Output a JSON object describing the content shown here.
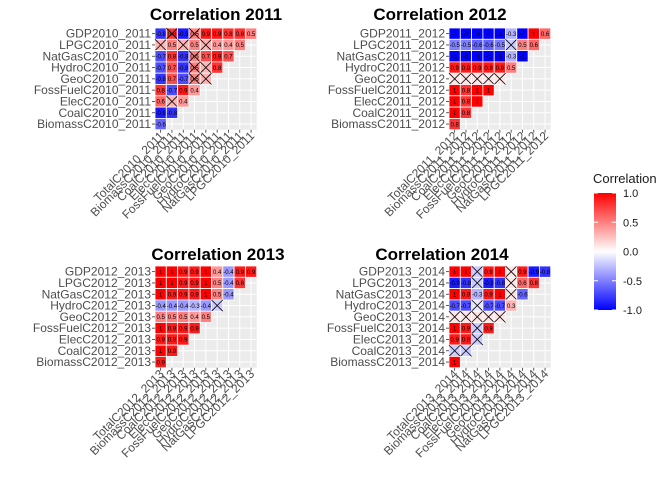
{
  "figure": {
    "legend": {
      "title": "Correlation",
      "ticks": [
        "1.0",
        "0.5",
        "0.0",
        "-0.5",
        "-1.0"
      ],
      "tick_values": [
        1.0,
        0.5,
        0.0,
        -0.5,
        -1.0
      ],
      "range": [
        -1,
        1
      ],
      "colors": {
        "low": "#0000FF",
        "mid": "#FFFFFF",
        "high": "#FF0000"
      }
    },
    "colors": {
      "panel_bg": "#EBEBEB",
      "grid": "#FFFFFF",
      "text": "#1A1A1A",
      "axis_text": "#4D4D4D"
    }
  },
  "chart_data": [
    {
      "type": "heatmap",
      "title": "Correlation 2011",
      "row_labels": [
        "GDP2010_2011",
        "LPGC2010_2011",
        "NatGasC2010_2011",
        "HydroC2010_2011",
        "GeoC2010_2011",
        "FossFuelC2010_2011",
        "ElecC2010_2011",
        "CoalC2010_2011",
        "BiomassC2010_2011"
      ],
      "col_labels": [
        "TotalC2010_2011",
        "BiomassC2010_2011",
        "CoalC2010_2011",
        "ElecC2010_2011",
        "FossFuelC2010_2011",
        "GeoC2010_2011",
        "HydroC2010_2011",
        "NatGasC2010_2011",
        "LPGC2010_2011"
      ],
      "cells": [
        [
          {
            "v": -0.8,
            "label": "-0.8"
          },
          {
            "v": 0.8,
            "label": "0.8",
            "x": true
          },
          {
            "v": -0.9,
            "label": "-0.9"
          },
          {
            "v": 0.5,
            "label": "0.5",
            "x": true
          },
          {
            "v": 0.9,
            "label": "0.9"
          },
          {
            "v": 0.9,
            "label": "0.9"
          },
          {
            "v": 0.8,
            "label": "0.8"
          },
          {
            "v": 0.8,
            "label": "0.8"
          },
          {
            "v": 0.5,
            "label": "0.5"
          }
        ],
        [
          {
            "v": 0.3,
            "x": true
          },
          {
            "v": 0.5,
            "label": "0.5"
          },
          {
            "v": 0.3,
            "x": true
          },
          {
            "v": 0.5,
            "label": "0.5"
          },
          {
            "v": 0.3,
            "x": true
          },
          {
            "v": 0.4,
            "label": "0.4"
          },
          {
            "v": 0.4,
            "label": "0.4"
          },
          {
            "v": 0.5,
            "label": "0.5"
          }
        ],
        [
          {
            "v": -0.7,
            "label": "-0.7"
          },
          {
            "v": 0.8,
            "label": "0.8"
          },
          {
            "v": -0.8,
            "label": "-0.8"
          },
          {
            "v": 0.5,
            "label": "0.5",
            "x": true
          },
          {
            "v": 0.7,
            "label": "0.7"
          },
          {
            "v": 0.9,
            "label": "0.9"
          },
          {
            "v": 0.7,
            "label": "0.7"
          }
        ],
        [
          {
            "v": -0.7,
            "label": "-0.7"
          },
          {
            "v": 0.7,
            "label": "0.7"
          },
          {
            "v": -0.8,
            "label": "-0.8"
          },
          {
            "v": 0.5,
            "label": "0.5",
            "x": true
          },
          {
            "v": 0.3,
            "x": true
          },
          {
            "v": 0.8,
            "label": "0.8"
          }
        ],
        [
          {
            "v": -0.8,
            "label": "-0.8"
          },
          {
            "v": 0.7,
            "label": "0.7"
          },
          {
            "v": -0.7,
            "label": "-0.7"
          },
          {
            "v": 0.5,
            "label": "0.5",
            "x": true
          },
          {
            "v": 0.3,
            "x": true
          }
        ],
        [
          {
            "v": 0.8,
            "label": "0.8"
          },
          {
            "v": -0.7,
            "label": "-0.7"
          },
          {
            "v": 0.9,
            "label": "0.9"
          },
          {
            "v": 0.4,
            "label": "0.4"
          }
        ],
        [
          {
            "v": 0.6,
            "label": "0.6"
          },
          {
            "v": 0.3,
            "x": true
          },
          {
            "v": 0.4,
            "label": "0.4"
          }
        ],
        [
          {
            "v": -0.9,
            "label": "-0.9"
          },
          {
            "v": -0.8,
            "label": "-0.8"
          }
        ],
        [
          {
            "v": -0.6,
            "label": "-0.6"
          }
        ]
      ]
    },
    {
      "type": "heatmap",
      "title": "Correlation 2012",
      "row_labels": [
        "GDP2011_2012",
        "LPGC2011_2012",
        "NatGasC2011_2012",
        "HydroC2011_2012",
        "GeoC2011_2012",
        "FossFuelC2011_2012",
        "ElecC2011_2012",
        "CoalC2011_2012",
        "BiomassC2011_2012"
      ],
      "col_labels": [
        "TotalC2011_2012",
        "BiomassC2011_2012",
        "CoalC2011_2012",
        "ElecC2011_2012",
        "FossFuelC2011_2012",
        "GeoC2011_2012",
        "HydroC2011_2012",
        "NatGasC2011_2012",
        "LPGC2011_2012"
      ],
      "cells": [
        [
          {
            "v": -1,
            "label": "-1"
          },
          {
            "v": -1,
            "label": "-1"
          },
          {
            "v": -1,
            "label": "-1"
          },
          {
            "v": -1,
            "label": "-1"
          },
          {
            "v": -1,
            "label": "-1"
          },
          {
            "v": -0.3,
            "label": "-0.3"
          },
          {
            "v": -1,
            "label": "-1"
          },
          {
            "v": 1,
            "label": "1"
          },
          {
            "v": 0.6,
            "label": "0.6"
          }
        ],
        [
          {
            "v": -0.5,
            "label": "-0.5"
          },
          {
            "v": -0.5,
            "label": "-0.5"
          },
          {
            "v": -0.6,
            "label": "-0.6"
          },
          {
            "v": -0.6,
            "label": "-0.6"
          },
          {
            "v": -0.5,
            "label": "-0.5"
          },
          {
            "v": -0.2,
            "x": true
          },
          {
            "v": 0.5,
            "label": "0.5"
          },
          {
            "v": 0.6,
            "label": "0.6"
          }
        ],
        [
          {
            "v": -1,
            "label": "-1"
          },
          {
            "v": -1,
            "label": "-1"
          },
          {
            "v": -1,
            "label": "-1"
          },
          {
            "v": -1,
            "label": "-1"
          },
          {
            "v": -1,
            "label": "-1"
          },
          {
            "v": -0.3,
            "label": "-0.3"
          },
          {
            "v": -1,
            "label": "-1"
          }
        ],
        [
          {
            "v": 0.9,
            "label": "0.9"
          },
          {
            "v": 0.9,
            "label": "0.9"
          },
          {
            "v": 0.9,
            "label": "0.9"
          },
          {
            "v": 0.9,
            "label": "0.9"
          },
          {
            "v": 0.9,
            "label": "0.9"
          },
          {
            "v": 0.5,
            "label": "0.5"
          }
        ],
        [
          {
            "v": 0.1,
            "x": true
          },
          {
            "v": 0.1,
            "x": true
          },
          {
            "v": 0.1,
            "x": true
          },
          {
            "v": 0.1,
            "x": true
          },
          {
            "v": 0.1,
            "x": true
          }
        ],
        [
          {
            "v": 1,
            "label": "1"
          },
          {
            "v": 0.8,
            "label": "0.8"
          },
          {
            "v": 1,
            "label": "1"
          },
          {
            "v": 1,
            "label": "1"
          }
        ],
        [
          {
            "v": 1,
            "label": "1"
          },
          {
            "v": 0.8,
            "label": "0.8"
          },
          {
            "v": 1,
            "label": "1"
          }
        ],
        [
          {
            "v": 1,
            "label": "1"
          },
          {
            "v": 0.8,
            "label": "0.8"
          }
        ],
        [
          {
            "v": 0.8,
            "label": "0.8"
          }
        ]
      ]
    },
    {
      "type": "heatmap",
      "title": "Correlation 2013",
      "row_labels": [
        "GDP2012_2013",
        "LPGC2012_2013",
        "NatGasC2012_2013",
        "HydroC2012_2013",
        "GeoC2012_2013",
        "FossFuelC2012_2013",
        "ElecC2012_2013",
        "CoalC2012_2013",
        "BiomassC2012_2013"
      ],
      "col_labels": [
        "TotalC2012_2013",
        "BiomassC2012_2013",
        "CoalC2012_2013",
        "ElecC2012_2013",
        "FossFuelC2012_2013",
        "GeoC2012_2013",
        "HydroC2012_2013",
        "NatGasC2012_2013",
        "LPGC2012_2013"
      ],
      "cells": [
        [
          {
            "v": 1,
            "label": "1"
          },
          {
            "v": 1,
            "label": "1"
          },
          {
            "v": 0.9,
            "label": "0.9"
          },
          {
            "v": 0.9,
            "label": "0.9"
          },
          {
            "v": 1,
            "label": "1"
          },
          {
            "v": 0.4,
            "label": "0.4"
          },
          {
            "v": -0.4,
            "label": "-0.4"
          },
          {
            "v": 0.9,
            "label": "0.9"
          },
          {
            "v": 0.9,
            "label": "0.9"
          }
        ],
        [
          {
            "v": 1,
            "label": "1"
          },
          {
            "v": 1,
            "label": "1"
          },
          {
            "v": 0.9,
            "label": "0.9"
          },
          {
            "v": 0.9,
            "label": "0.9"
          },
          {
            "v": 1,
            "label": "1"
          },
          {
            "v": 0.5,
            "label": "0.5"
          },
          {
            "v": -0.4,
            "label": "-0.4"
          },
          {
            "v": 0.8,
            "label": "0.8"
          }
        ],
        [
          {
            "v": 1,
            "label": "1"
          },
          {
            "v": 0.9,
            "label": "0.9"
          },
          {
            "v": 0.9,
            "label": "0.9"
          },
          {
            "v": 0.9,
            "label": "0.9"
          },
          {
            "v": 1,
            "label": "1"
          },
          {
            "v": 0.5,
            "label": "0.5"
          },
          {
            "v": -0.4,
            "label": "-0.4"
          }
        ],
        [
          {
            "v": -0.4,
            "label": "-0.4"
          },
          {
            "v": -0.4,
            "label": "-0.4"
          },
          {
            "v": -0.4,
            "label": "-0.4"
          },
          {
            "v": -0.3,
            "label": "-0.3"
          },
          {
            "v": -0.4,
            "label": "-0.4"
          },
          {
            "v": -0.2,
            "x": true
          }
        ],
        [
          {
            "v": 0.5,
            "label": "0.5"
          },
          {
            "v": 0.5,
            "label": "0.5"
          },
          {
            "v": 0.5,
            "label": "0.5"
          },
          {
            "v": 0.4,
            "label": "0.4"
          },
          {
            "v": 0.5,
            "label": "0.5"
          }
        ],
        [
          {
            "v": 1,
            "label": "1"
          },
          {
            "v": 0.9,
            "label": "0.9"
          },
          {
            "v": 0.9,
            "label": "0.9"
          },
          {
            "v": 0.9,
            "label": "0.9"
          }
        ],
        [
          {
            "v": 0.9,
            "label": "0.9"
          },
          {
            "v": 0.9,
            "label": "0.9"
          },
          {
            "v": 0.9,
            "label": "0.9"
          }
        ],
        [
          {
            "v": 1,
            "label": "1"
          },
          {
            "v": 0.9,
            "label": "0.9"
          }
        ],
        [
          {
            "v": 0.9,
            "label": "0.9"
          }
        ]
      ]
    },
    {
      "type": "heatmap",
      "title": "Correlation 2014",
      "row_labels": [
        "GDP2013_2014",
        "LPGC2013_2014",
        "NatGasC2013_2014",
        "HydroC2013_2014",
        "GeoC2013_2014",
        "FossFuelC2013_2014",
        "ElecC2013_2014",
        "CoalC2013_2014",
        "BiomassC2013_2014"
      ],
      "col_labels": [
        "TotalC2013_2014",
        "BiomassC2013_2014",
        "CoalC2013_2014",
        "ElecC2013_2014",
        "FossFuelC2013_2014",
        "GeoC2013_2014",
        "HydroC2013_2014",
        "NatGasC2013_2014",
        "LPGC2013_2014"
      ],
      "cells": [
        [
          {
            "v": 1,
            "label": "1"
          },
          {
            "v": 1,
            "label": "1"
          },
          {
            "v": -0.2,
            "x": true
          },
          {
            "v": 0.9,
            "label": "0.9"
          },
          {
            "v": 1,
            "label": "1"
          },
          {
            "v": 0.1,
            "x": true
          },
          {
            "v": 0.9,
            "label": "0.9"
          },
          {
            "v": -0.9,
            "label": "-0.9"
          },
          {
            "v": -0.8,
            "label": "-0.8"
          }
        ],
        [
          {
            "v": -0.9,
            "label": "-0.9"
          },
          {
            "v": -0.8,
            "label": "-0.8"
          },
          {
            "v": -0.2,
            "x": true
          },
          {
            "v": -0.9,
            "label": "-0.9"
          },
          {
            "v": -0.8,
            "label": "-0.8"
          },
          {
            "v": 0.1,
            "x": true
          },
          {
            "v": 0.6,
            "label": "0.6"
          },
          {
            "v": 0.8,
            "label": "0.8"
          }
        ],
        [
          {
            "v": 1,
            "label": "1"
          },
          {
            "v": 0.9,
            "label": "0.9"
          },
          {
            "v": -0.3,
            "label": "-0.3"
          },
          {
            "v": 0.9,
            "label": "0.9"
          },
          {
            "v": 1,
            "label": "1"
          },
          {
            "v": 0.1,
            "x": true
          },
          {
            "v": -0.6,
            "label": "-0.6"
          }
        ],
        [
          {
            "v": -0.7,
            "label": "-0.7"
          },
          {
            "v": -0.7,
            "label": "-0.7"
          },
          {
            "v": -0.1,
            "x": true
          },
          {
            "v": -0.7,
            "label": "-0.7"
          },
          {
            "v": -0.7,
            "label": "-0.7"
          },
          {
            "v": 0.3,
            "label": "0.3"
          }
        ],
        [
          {
            "v": 0.1,
            "x": true
          },
          {
            "v": 0.1,
            "x": true
          },
          {
            "v": 0.1,
            "x": true
          },
          {
            "v": 0.1,
            "x": true
          },
          {
            "v": 0.1,
            "x": true
          }
        ],
        [
          {
            "v": 1,
            "label": "1"
          },
          {
            "v": 0.9,
            "label": "0.9"
          },
          {
            "v": -0.2,
            "x": true
          },
          {
            "v": 0.9,
            "label": "0.9"
          }
        ],
        [
          {
            "v": 0.9,
            "label": "0.9"
          },
          {
            "v": 0.9,
            "label": "0.9"
          },
          {
            "v": -0.2,
            "x": true
          }
        ],
        [
          {
            "v": -0.2,
            "x": true
          },
          {
            "v": -0.2,
            "x": true
          }
        ],
        [
          {
            "v": 1,
            "label": "1"
          }
        ]
      ]
    }
  ]
}
